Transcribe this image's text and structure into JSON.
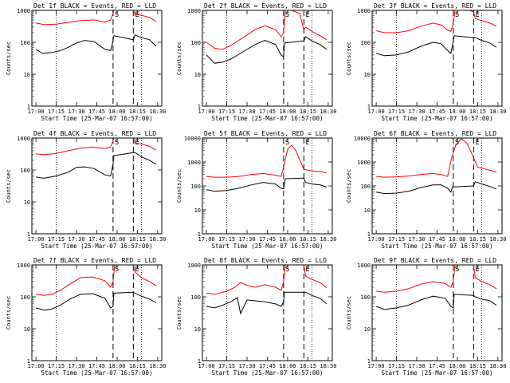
{
  "chart_data": [
    {
      "type": "line",
      "title": "Det 1f BLACK = Events, RED = LLD",
      "xlabel": "Start Time (25-Mar-07 16:57:00)",
      "ylabel": "Counts/sec",
      "ylim": [
        1,
        1000
      ],
      "y_scale": "log",
      "x_ticks": [
        "17:00",
        "17:15",
        "17:30",
        "17:45",
        "18:00",
        "18:15",
        "18:30"
      ],
      "markers": [
        "S",
        "E"
      ],
      "series": [
        {
          "name": "LLD",
          "color": "#ff0000",
          "x": [
            17.0,
            17.1,
            17.25,
            17.4,
            17.55,
            17.72,
            17.85,
            17.92,
            17.95,
            17.96,
            17.99,
            18.0,
            18.15,
            18.2,
            18.22,
            18.3,
            18.4,
            18.48
          ],
          "y": [
            400,
            360,
            370,
            420,
            480,
            500,
            430,
            500,
            800,
            1000,
            1000,
            1000,
            1000,
            1000,
            760,
            700,
            600,
            450
          ]
        },
        {
          "name": "Events",
          "color": "#000000",
          "x": [
            17.0,
            17.08,
            17.2,
            17.3,
            17.4,
            17.5,
            17.6,
            17.72,
            17.85,
            17.92,
            17.95,
            17.96,
            18.2,
            18.22,
            18.3,
            18.4,
            18.48
          ],
          "y": [
            60,
            45,
            48,
            55,
            70,
            95,
            115,
            105,
            60,
            55,
            110,
            160,
            120,
            170,
            140,
            120,
            75
          ]
        }
      ]
    },
    {
      "type": "line",
      "title": "Det 2f BLACK = Events, RED = LLD",
      "xlabel": "Start Time (25-Mar-07 16:57:00)",
      "ylabel": "Counts/sec",
      "ylim": [
        1,
        1000
      ],
      "y_scale": "log",
      "x_ticks": [
        "17:00",
        "17:15",
        "17:30",
        "17:45",
        "18:00",
        "18:15",
        "18:30"
      ],
      "markers": [
        "S",
        "E"
      ],
      "series": [
        {
          "name": "LLD",
          "color": "#ff0000",
          "x": [
            17.0,
            17.1,
            17.2,
            17.3,
            17.45,
            17.6,
            17.72,
            17.85,
            17.92,
            17.95,
            17.97,
            18.05,
            18.15,
            18.2,
            18.22,
            18.3,
            18.4,
            18.48
          ],
          "y": [
            100,
            65,
            60,
            80,
            140,
            250,
            330,
            250,
            150,
            200,
            1000,
            1000,
            800,
            240,
            300,
            220,
            160,
            120
          ]
        },
        {
          "name": "Events",
          "color": "#000000",
          "x": [
            17.0,
            17.1,
            17.2,
            17.3,
            17.45,
            17.6,
            17.72,
            17.85,
            17.92,
            17.95,
            17.96,
            18.2,
            18.22,
            18.3,
            18.4,
            18.48
          ],
          "y": [
            40,
            22,
            24,
            30,
            50,
            85,
            115,
            85,
            40,
            35,
            95,
            110,
            150,
            110,
            85,
            60
          ]
        }
      ]
    },
    {
      "type": "line",
      "title": "Det 3f BLACK = Events, RED = LLD",
      "xlabel": "Start Time (25-Mar-07 16:57:00)",
      "ylabel": "Counts/sec",
      "ylim": [
        1,
        1000
      ],
      "y_scale": "log",
      "x_ticks": [
        "17:00",
        "17:15",
        "17:30",
        "17:45",
        "18:00",
        "18:15",
        "18:30"
      ],
      "markers": [
        "S",
        "E"
      ],
      "series": [
        {
          "name": "LLD",
          "color": "#ff0000",
          "x": [
            17.0,
            17.1,
            17.25,
            17.4,
            17.55,
            17.7,
            17.8,
            17.88,
            17.92,
            17.95,
            17.97,
            18.15,
            18.2,
            18.22,
            18.3,
            18.4,
            18.48
          ],
          "y": [
            230,
            200,
            200,
            230,
            320,
            400,
            350,
            240,
            220,
            400,
            1000,
            1000,
            900,
            550,
            480,
            400,
            320
          ]
        },
        {
          "name": "Events",
          "color": "#000000",
          "x": [
            17.0,
            17.1,
            17.25,
            17.4,
            17.55,
            17.7,
            17.8,
            17.88,
            17.92,
            17.95,
            17.96,
            18.2,
            18.22,
            18.3,
            18.4,
            18.48
          ],
          "y": [
            45,
            38,
            40,
            50,
            75,
            100,
            90,
            55,
            45,
            110,
            160,
            140,
            140,
            115,
            95,
            70
          ]
        }
      ]
    },
    {
      "type": "line",
      "title": "Det 4f BLACK = Events, RED = LLD",
      "xlabel": "Start Time (25-Mar-07 16:57:00)",
      "ylabel": "Counts/sec",
      "ylim": [
        1,
        1000
      ],
      "y_scale": "log",
      "x_ticks": [
        "17:00",
        "17:15",
        "17:30",
        "17:45",
        "18:00",
        "18:15",
        "18:30"
      ],
      "markers": [
        "S",
        "E"
      ],
      "series": [
        {
          "name": "LLD",
          "color": "#ff0000",
          "x": [
            17.0,
            17.1,
            17.25,
            17.4,
            17.55,
            17.7,
            17.85,
            17.92,
            17.95,
            17.96,
            18.15,
            18.2,
            18.22,
            18.3,
            18.4,
            18.48
          ],
          "y": [
            320,
            300,
            330,
            400,
            480,
            520,
            470,
            520,
            800,
            1000,
            1000,
            1000,
            700,
            650,
            550,
            420
          ]
        },
        {
          "name": "Events",
          "color": "#000000",
          "x": [
            17.0,
            17.1,
            17.25,
            17.4,
            17.5,
            17.6,
            17.72,
            17.85,
            17.92,
            17.95,
            17.96,
            18.2,
            18.22,
            18.3,
            18.4,
            18.48
          ],
          "y": [
            60,
            55,
            65,
            85,
            120,
            125,
            110,
            70,
            65,
            150,
            280,
            350,
            350,
            260,
            200,
            150
          ]
        }
      ]
    },
    {
      "type": "line",
      "title": "Det 5f BLACK = Events, RED = LLD",
      "xlabel": "Start Time (25-Mar-07 16:57:00)",
      "ylabel": "Counts/sec",
      "ylim": [
        1,
        10000
      ],
      "y_scale": "log",
      "x_ticks": [
        "17:00",
        "17:15",
        "17:30",
        "17:45",
        "18:00",
        "18:15",
        "18:30"
      ],
      "markers": [
        "S",
        "E"
      ],
      "series": [
        {
          "name": "LLD",
          "color": "#ff0000",
          "x": [
            17.0,
            17.1,
            17.25,
            17.4,
            17.55,
            17.7,
            17.85,
            17.92,
            17.95,
            18.0,
            18.05,
            18.1,
            18.15,
            18.2,
            18.25,
            18.3,
            18.4,
            18.48
          ],
          "y": [
            250,
            230,
            230,
            250,
            300,
            330,
            280,
            250,
            600,
            3500,
            5000,
            3000,
            1200,
            500,
            450,
            420,
            400,
            350
          ]
        },
        {
          "name": "Events",
          "color": "#000000",
          "x": [
            17.0,
            17.1,
            17.25,
            17.4,
            17.55,
            17.7,
            17.85,
            17.92,
            17.95,
            17.97,
            18.2,
            18.22,
            18.3,
            18.4,
            18.48
          ],
          "y": [
            70,
            60,
            65,
            80,
            110,
            140,
            120,
            80,
            75,
            200,
            210,
            140,
            120,
            110,
            90
          ]
        }
      ]
    },
    {
      "type": "line",
      "title": "Det 6f BLACK = Events, RED = LLD",
      "xlabel": "Start Time (25-Mar-07 16:57:00)",
      "ylabel": "Counts/sec",
      "ylim": [
        1,
        10000
      ],
      "y_scale": "log",
      "x_ticks": [
        "17:00",
        "17:15",
        "17:30",
        "17:45",
        "18:00",
        "18:15",
        "18:30"
      ],
      "markers": [
        "S",
        "E"
      ],
      "series": [
        {
          "name": "LLD",
          "color": "#ff0000",
          "x": [
            17.0,
            17.1,
            17.25,
            17.4,
            17.55,
            17.7,
            17.8,
            17.88,
            17.93,
            17.98,
            18.05,
            18.12,
            18.2,
            18.25,
            18.3,
            18.4,
            18.48
          ],
          "y": [
            250,
            230,
            240,
            260,
            300,
            330,
            300,
            250,
            1500,
            5000,
            9500,
            6000,
            1500,
            600,
            550,
            450,
            380
          ]
        },
        {
          "name": "Events",
          "color": "#000000",
          "x": [
            17.0,
            17.1,
            17.25,
            17.4,
            17.55,
            17.7,
            17.8,
            17.88,
            17.92,
            17.94,
            18.2,
            18.22,
            18.3,
            18.4,
            18.48
          ],
          "y": [
            55,
            48,
            50,
            60,
            85,
            110,
            110,
            80,
            55,
            90,
            100,
            150,
            120,
            95,
            75
          ]
        }
      ]
    },
    {
      "type": "line",
      "title": "Det 7f BLACK = Events, RED = LLD",
      "xlabel": "Start Time (25-Mar-07 16:57:00)",
      "ylabel": "Counts/sec",
      "ylim": [
        1,
        1000
      ],
      "y_scale": "log",
      "x_ticks": [
        "17:00",
        "17:15",
        "17:30",
        "17:45",
        "18:00",
        "18:15",
        "18:30"
      ],
      "markers": [
        "S",
        "E"
      ],
      "series": [
        {
          "name": "LLD",
          "color": "#ff0000",
          "x": [
            17.0,
            17.1,
            17.2,
            17.3,
            17.42,
            17.55,
            17.7,
            17.85,
            17.92,
            17.95,
            17.97,
            18.15,
            18.2,
            18.22,
            18.3,
            18.4,
            18.48
          ],
          "y": [
            120,
            110,
            120,
            160,
            250,
            400,
            420,
            320,
            200,
            300,
            1000,
            1000,
            1000,
            600,
            400,
            300,
            220
          ]
        },
        {
          "name": "Events",
          "color": "#000000",
          "x": [
            17.0,
            17.1,
            17.2,
            17.3,
            17.42,
            17.55,
            17.7,
            17.85,
            17.92,
            17.95,
            17.96,
            18.2,
            18.22,
            18.3,
            18.4,
            18.48
          ],
          "y": [
            45,
            38,
            42,
            55,
            85,
            120,
            125,
            90,
            45,
            50,
            130,
            140,
            130,
            105,
            85,
            65
          ]
        }
      ]
    },
    {
      "type": "line",
      "title": "Det 8f BLACK = Events, RED = LLD",
      "xlabel": "Start Time (25-Mar-07 16:57:00)",
      "ylabel": "Counts/sec",
      "ylim": [
        1,
        1000
      ],
      "y_scale": "log",
      "x_ticks": [
        "17:00",
        "17:15",
        "17:30",
        "17:45",
        "18:00",
        "18:15",
        "18:30"
      ],
      "markers": [
        "S",
        "E"
      ],
      "series": [
        {
          "name": "LLD",
          "color": "#ff0000",
          "x": [
            17.0,
            17.1,
            17.25,
            17.35,
            17.42,
            17.5,
            17.6,
            17.72,
            17.85,
            17.92,
            17.95,
            17.97,
            18.15,
            18.2,
            18.22,
            18.3,
            18.4,
            18.48
          ],
          "y": [
            130,
            120,
            150,
            200,
            280,
            230,
            200,
            240,
            200,
            160,
            300,
            1000,
            1000,
            1000,
            450,
            350,
            280,
            190
          ]
        },
        {
          "name": "Events",
          "color": "#000000",
          "x": [
            17.0,
            17.1,
            17.2,
            17.3,
            17.38,
            17.42,
            17.5,
            17.6,
            17.72,
            17.85,
            17.92,
            17.95,
            17.96,
            18.2,
            18.22,
            18.3,
            18.4,
            18.48
          ],
          "y": [
            50,
            45,
            55,
            70,
            95,
            30,
            80,
            75,
            70,
            60,
            50,
            70,
            140,
            140,
            140,
            110,
            90,
            60
          ]
        }
      ]
    },
    {
      "type": "line",
      "title": "Det 9f BLACK = Events, RED = LLD",
      "xlabel": "Start Time (25-Mar-07 16:57:00)",
      "ylabel": "Counts/sec",
      "ylim": [
        1,
        1000
      ],
      "y_scale": "log",
      "x_ticks": [
        "17:00",
        "17:15",
        "17:30",
        "17:45",
        "18:00",
        "18:15",
        "18:30"
      ],
      "markers": [
        "S",
        "E"
      ],
      "series": [
        {
          "name": "LLD",
          "color": "#ff0000",
          "x": [
            17.0,
            17.1,
            17.25,
            17.4,
            17.55,
            17.7,
            17.85,
            17.92,
            17.95,
            17.97,
            18.15,
            18.2,
            18.22,
            18.3,
            18.4,
            18.48
          ],
          "y": [
            150,
            140,
            150,
            180,
            250,
            300,
            260,
            200,
            300,
            1000,
            1000,
            1000,
            400,
            300,
            240,
            180
          ]
        },
        {
          "name": "Events",
          "color": "#000000",
          "x": [
            17.0,
            17.1,
            17.25,
            17.4,
            17.55,
            17.7,
            17.85,
            17.92,
            17.95,
            17.96,
            18.2,
            18.22,
            18.3,
            18.4,
            18.48
          ],
          "y": [
            50,
            40,
            45,
            55,
            80,
            105,
            90,
            50,
            45,
            120,
            110,
            100,
            85,
            75,
            55
          ]
        }
      ]
    }
  ]
}
